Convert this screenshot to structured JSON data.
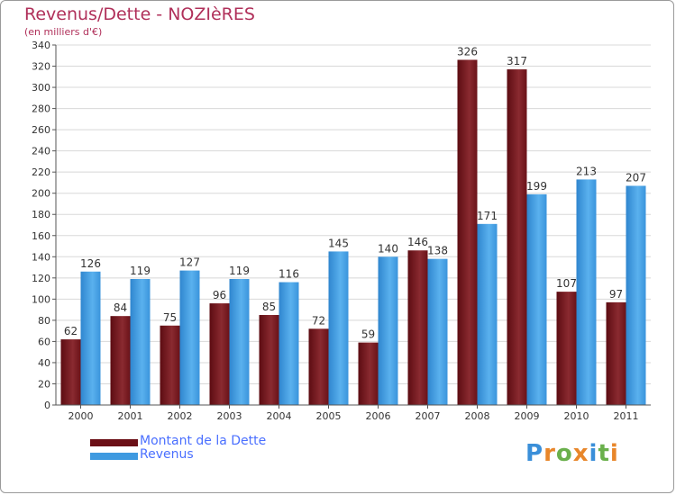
{
  "chart_data": {
    "type": "bar",
    "title": "Revenus/Dette - NOZIèRES",
    "subtitle": "(en milliers d'€)",
    "categories": [
      "2000",
      "2001",
      "2002",
      "2003",
      "2004",
      "2005",
      "2006",
      "2007",
      "2008",
      "2009",
      "2010",
      "2011"
    ],
    "series": [
      {
        "name": "Montant de la Dette",
        "color": "#7a1e24",
        "values": [
          62,
          84,
          75,
          96,
          85,
          72,
          59,
          146,
          326,
          317,
          107,
          97
        ]
      },
      {
        "name": "Revenus",
        "color": "#3f9ae0",
        "values": [
          126,
          119,
          127,
          119,
          116,
          145,
          140,
          138,
          171,
          199,
          213,
          207
        ]
      }
    ],
    "ylim": [
      0,
      340
    ],
    "yticks": [
      0,
      20,
      40,
      60,
      80,
      100,
      120,
      140,
      160,
      180,
      200,
      220,
      240,
      260,
      280,
      300,
      320,
      340
    ],
    "grid": true,
    "legend_position": "bottom-left"
  },
  "logo": {
    "text": "Proxiti",
    "letters": [
      {
        "ch": "P",
        "color": "#3a8fd9"
      },
      {
        "ch": "r",
        "color": "#e8862a"
      },
      {
        "ch": "o",
        "color": "#6ab04c"
      },
      {
        "ch": "x",
        "color": "#e8862a"
      },
      {
        "ch": "i",
        "color": "#3a8fd9"
      },
      {
        "ch": "t",
        "color": "#6ab04c"
      },
      {
        "ch": "i",
        "color": "#e8862a"
      }
    ]
  }
}
